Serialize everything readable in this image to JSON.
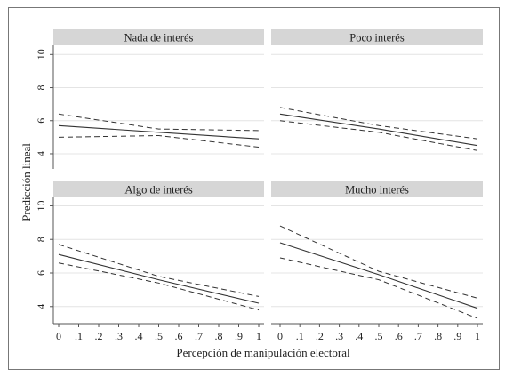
{
  "chart_data": {
    "type": "line",
    "xlabel": "Percepción de manipulación electoral",
    "ylabel": "Predicción lineal",
    "xlim": [
      0,
      1
    ],
    "ylim": [
      3.3,
      10.5
    ],
    "x_ticks": [
      0,
      0.1,
      0.2,
      0.3,
      0.4,
      0.5,
      0.6,
      0.7,
      0.8,
      0.9,
      1
    ],
    "x_tick_labels": [
      "0",
      ".1",
      ".2",
      ".3",
      ".4",
      ".5",
      ".6",
      ".7",
      ".8",
      ".9",
      "1"
    ],
    "y_ticks": [
      4,
      6,
      8,
      10
    ],
    "y_tick_labels": [
      "4",
      "6",
      "8",
      "10"
    ],
    "grid": true,
    "panels": [
      {
        "title": "Nada de interés",
        "x": [
          0,
          0.5,
          1
        ],
        "prediction": [
          5.7,
          5.3,
          4.9
        ],
        "ci_upper": [
          6.4,
          5.5,
          5.4
        ],
        "ci_lower": [
          5.0,
          5.1,
          4.4
        ]
      },
      {
        "title": "Poco interés",
        "x": [
          0,
          0.5,
          1
        ],
        "prediction": [
          6.4,
          5.5,
          4.5
        ],
        "ci_upper": [
          6.8,
          5.7,
          4.9
        ],
        "ci_lower": [
          6.0,
          5.3,
          4.2
        ]
      },
      {
        "title": "Algo de interés",
        "x": [
          0,
          0.5,
          1
        ],
        "prediction": [
          7.1,
          5.6,
          4.2
        ],
        "ci_upper": [
          7.7,
          5.8,
          4.6
        ],
        "ci_lower": [
          6.6,
          5.4,
          3.8
        ]
      },
      {
        "title": "Mucho interés",
        "x": [
          0,
          0.5,
          1
        ],
        "prediction": [
          7.8,
          5.9,
          3.9
        ],
        "ci_upper": [
          8.8,
          6.1,
          4.5
        ],
        "ci_lower": [
          6.9,
          5.6,
          3.3
        ]
      }
    ]
  },
  "colors": {
    "strip": "#d6d6d6",
    "grid": "#e4e4e4",
    "line": "#333333",
    "frame": "#555555"
  }
}
